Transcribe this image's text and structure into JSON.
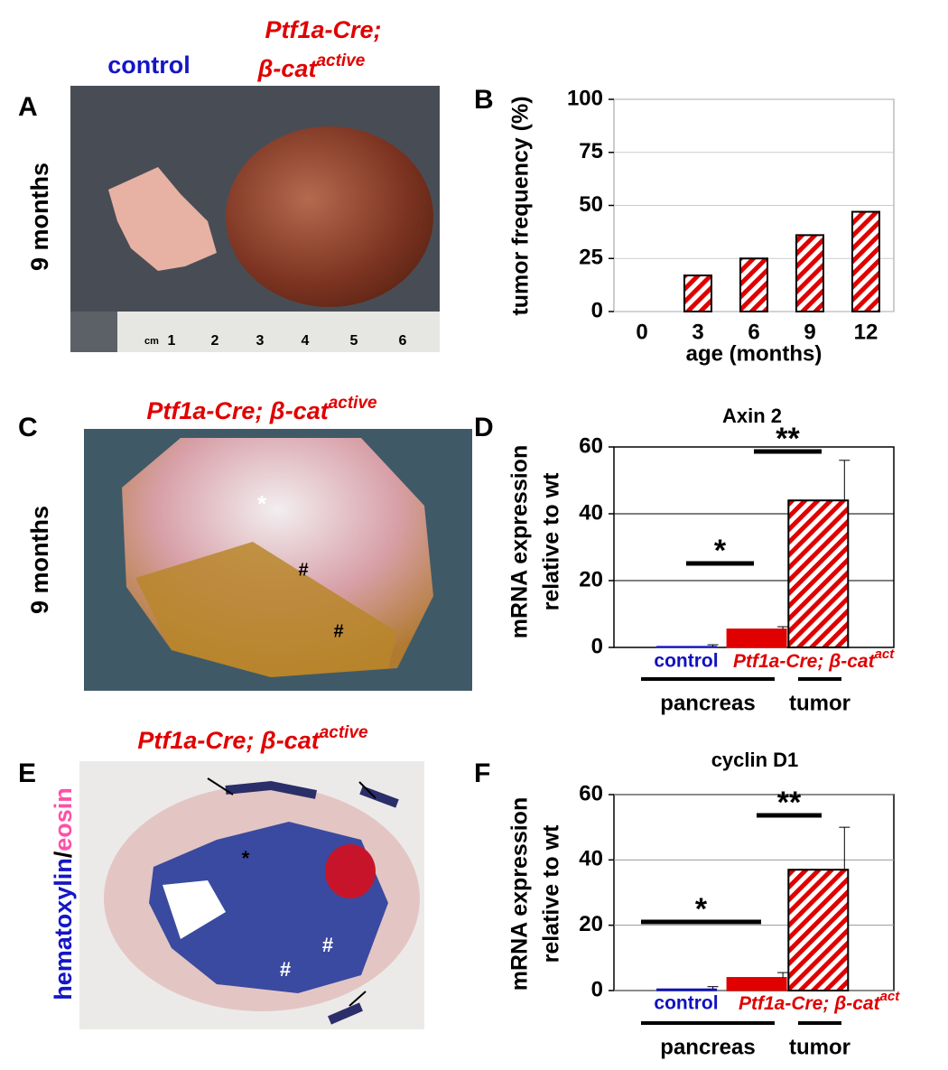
{
  "panel_a": {
    "letter": "A",
    "control": "control",
    "genotype": "Ptf1a-Cre;",
    "genotype2": "β-cat",
    "superscript": "active",
    "age": "9 months",
    "ruler": [
      "cm",
      "1",
      "2",
      "3",
      "4",
      "5",
      "6"
    ]
  },
  "panel_c": {
    "letter": "C",
    "genotype": "Ptf1a-Cre; β-cat",
    "superscript": "active",
    "age": "9 months",
    "markers": [
      "*",
      "#",
      "#"
    ]
  },
  "panel_e": {
    "letter": "E",
    "genotype": "Ptf1a-Cre; β-cat",
    "superscript": "active",
    "stain1": "hematoxylin",
    "slash": "/",
    "stain2": "eosin",
    "markers": [
      "*",
      "#",
      "#"
    ]
  },
  "chart_data": [
    {
      "type": "bar",
      "panel": "B",
      "ylabel": [
        "tumor frequency (%)"
      ],
      "xlabel": "age (months)",
      "categories": [
        "0",
        "3",
        "6",
        "9",
        "12"
      ],
      "values": [
        0,
        17,
        25,
        36,
        47
      ],
      "colors": [
        "#e00000",
        "#e00000",
        "#e00000",
        "#e00000",
        "#e00000"
      ],
      "hatch": [
        true,
        true,
        true,
        true,
        true
      ],
      "ylim": [
        0,
        100
      ],
      "yticks": [
        0,
        25,
        50,
        75,
        100
      ],
      "grid": true
    },
    {
      "type": "bar",
      "panel": "D",
      "title": "Axin 2",
      "ylabel": [
        "mRNA expression",
        "relative to wt"
      ],
      "categories": [
        "control",
        "Ptf1a-Cre; β-cat",
        null
      ],
      "category_superscript": "act",
      "values": [
        0.3,
        5.5,
        44
      ],
      "errors": [
        0.5,
        0.7,
        12
      ],
      "colors": [
        "#1010c0",
        "#e00000",
        "#e00000"
      ],
      "hatch": [
        false,
        false,
        true
      ],
      "ylim": [
        0,
        60
      ],
      "yticks": [
        0,
        20,
        40,
        60
      ],
      "grid": true,
      "significance": [
        "*",
        "**"
      ],
      "groups": [
        "pancreas",
        "tumor"
      ]
    },
    {
      "type": "bar",
      "panel": "F",
      "title": "cyclin D1",
      "ylabel": [
        "mRNA expression",
        "relative to wt"
      ],
      "categories": [
        "control",
        "Ptf1a-Cre; β-cat",
        null
      ],
      "category_superscript": "act",
      "values": [
        0.5,
        4,
        37
      ],
      "errors": [
        0.7,
        1.5,
        13
      ],
      "colors": [
        "#1010c0",
        "#e00000",
        "#e00000"
      ],
      "hatch": [
        false,
        false,
        true
      ],
      "ylim": [
        0,
        60
      ],
      "yticks": [
        0,
        20,
        40,
        60
      ],
      "grid": true,
      "significance": [
        "*",
        "**"
      ],
      "groups": [
        "pancreas",
        "tumor"
      ]
    }
  ]
}
